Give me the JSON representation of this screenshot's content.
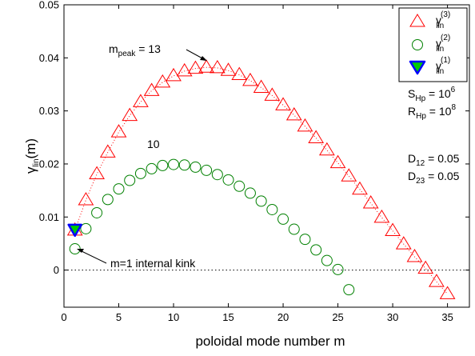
{
  "chart_data": {
    "type": "scatter",
    "xlabel": "poloidal mode number m",
    "ylabel": {
      "base": "γ",
      "sub": "lin",
      "rest": "(m)"
    },
    "xlim": [
      0,
      37
    ],
    "ylim": [
      -0.007,
      0.05
    ],
    "xticks": [
      0,
      5,
      10,
      15,
      20,
      25,
      30,
      35
    ],
    "yticks": [
      0,
      0.01,
      0.02,
      0.03,
      0.04,
      0.05
    ],
    "grid": false,
    "legend_position": "top-right",
    "series": [
      {
        "name": {
          "base": "γ",
          "sub": "lin",
          "sup": "(3)"
        },
        "marker": "triangle-up",
        "color": "#ff0000",
        "connector": "dotted",
        "x": [
          1,
          2,
          3,
          4,
          5,
          6,
          7,
          8,
          9,
          10,
          11,
          12,
          13,
          14,
          15,
          16,
          17,
          18,
          19,
          20,
          21,
          22,
          23,
          24,
          25,
          26,
          27,
          28,
          29,
          30,
          31,
          32,
          33,
          34,
          35
        ],
        "y": [
          0.0075,
          0.0132,
          0.0181,
          0.0222,
          0.026,
          0.0291,
          0.0317,
          0.0338,
          0.0354,
          0.0366,
          0.0375,
          0.038,
          0.0382,
          0.0381,
          0.0376,
          0.0368,
          0.0357,
          0.0344,
          0.0329,
          0.0311,
          0.0292,
          0.0271,
          0.0249,
          0.0226,
          0.0202,
          0.0177,
          0.0152,
          0.0126,
          0.0099,
          0.0074,
          0.0049,
          0.0025,
          0.0003,
          -0.0022,
          -0.0045
        ]
      },
      {
        "name": {
          "base": "γ",
          "sub": "lin",
          "sup": "(2)"
        },
        "marker": "circle",
        "color": "#008000",
        "connector": "none",
        "x": [
          1,
          2,
          3,
          4,
          5,
          6,
          7,
          8,
          9,
          10,
          11,
          12,
          13,
          14,
          15,
          16,
          17,
          18,
          19,
          20,
          21,
          22,
          23,
          24,
          25,
          26
        ],
        "y": [
          0.004,
          0.0078,
          0.0108,
          0.0133,
          0.0153,
          0.0169,
          0.0182,
          0.0191,
          0.0197,
          0.0199,
          0.0198,
          0.0194,
          0.0188,
          0.018,
          0.017,
          0.0158,
          0.0145,
          0.013,
          0.0114,
          0.0096,
          0.0077,
          0.0058,
          0.0038,
          0.0018,
          0.0001,
          -0.0037
        ]
      },
      {
        "name": {
          "base": "γ",
          "sub": "lin",
          "sup": "(1)"
        },
        "marker": "triangle-down",
        "color": "#0000ff",
        "fill": "#00cc00",
        "connector": "none",
        "x": [
          1
        ],
        "y": [
          0.0075
        ]
      }
    ],
    "annotations": {
      "peak_label": {
        "base": "m",
        "sub": "peak",
        "rest": " = 13"
      },
      "green_peak_label": "10",
      "kink_label": "m=1 internal kink",
      "params1": [
        {
          "base": "S",
          "sub": "Hp",
          "rest": " = 10",
          "sup": "6"
        },
        {
          "base": "R",
          "sub": "Hp",
          "rest": " = 10",
          "sup": "8"
        }
      ],
      "params2": [
        {
          "base": "D",
          "sub": "12",
          "rest": " = 0.05"
        },
        {
          "base": "D",
          "sub": "23",
          "rest": " = 0.05"
        }
      ]
    }
  }
}
